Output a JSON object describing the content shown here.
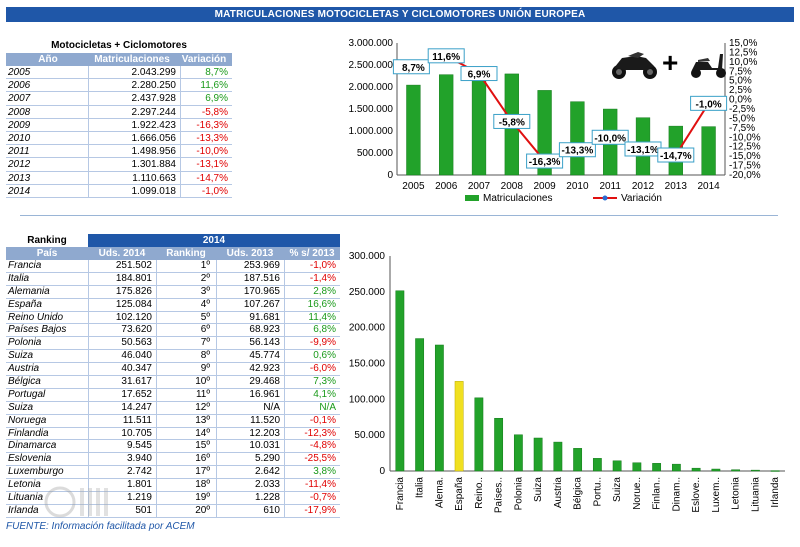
{
  "header": {
    "title": "MATRICULACIONES MOTOCICLETAS Y CICLOMOTORES UNIÓN EUROPEA"
  },
  "table1": {
    "title": "Motocicletas + Ciclomotores",
    "headers": [
      "Año",
      "Matriculaciones",
      "Variación"
    ],
    "rows": [
      {
        "year": "2005",
        "mat": "2.043.299",
        "var": "8,7%",
        "sign": "pos"
      },
      {
        "year": "2006",
        "mat": "2.280.250",
        "var": "11,6%",
        "sign": "pos"
      },
      {
        "year": "2007",
        "mat": "2.437.928",
        "var": "6,9%",
        "sign": "pos"
      },
      {
        "year": "2008",
        "mat": "2.297.244",
        "var": "-5,8%",
        "sign": "neg"
      },
      {
        "year": "2009",
        "mat": "1.922.423",
        "var": "-16,3%",
        "sign": "neg"
      },
      {
        "year": "2010",
        "mat": "1.666.056",
        "var": "-13,3%",
        "sign": "neg"
      },
      {
        "year": "2011",
        "mat": "1.498.956",
        "var": "-10,0%",
        "sign": "neg"
      },
      {
        "year": "2012",
        "mat": "1.301.884",
        "var": "-13,1%",
        "sign": "neg"
      },
      {
        "year": "2013",
        "mat": "1.110.663",
        "var": "-14,7%",
        "sign": "neg"
      },
      {
        "year": "2014",
        "mat": "1.099.018",
        "var": "-1,0%",
        "sign": "neg"
      }
    ]
  },
  "table2": {
    "ranking_label": "Ranking",
    "year_label": "2014",
    "headers": [
      "País",
      "Uds. 2014",
      "Ranking",
      "Uds. 2013",
      "% s/ 2013"
    ],
    "rows": [
      {
        "pais": "Francia",
        "uds": "251.502",
        "rank": "1º",
        "uds13": "253.969",
        "pct": "-1,0%",
        "sign": "neg"
      },
      {
        "pais": "Italia",
        "uds": "184.801",
        "rank": "2º",
        "uds13": "187.516",
        "pct": "-1,4%",
        "sign": "neg"
      },
      {
        "pais": "Alemania",
        "uds": "175.826",
        "rank": "3º",
        "uds13": "170.965",
        "pct": "2,8%",
        "sign": "pos"
      },
      {
        "pais": "España",
        "uds": "125.084",
        "rank": "4º",
        "uds13": "107.267",
        "pct": "16,6%",
        "sign": "pos"
      },
      {
        "pais": "Reino Unido",
        "uds": "102.120",
        "rank": "5º",
        "uds13": "91.681",
        "pct": "11,4%",
        "sign": "pos"
      },
      {
        "pais": "Países Bajos",
        "uds": "73.620",
        "rank": "6º",
        "uds13": "68.923",
        "pct": "6,8%",
        "sign": "pos"
      },
      {
        "pais": "Polonia",
        "uds": "50.563",
        "rank": "7º",
        "uds13": "56.143",
        "pct": "-9,9%",
        "sign": "neg"
      },
      {
        "pais": "Suiza",
        "uds": "46.040",
        "rank": "8º",
        "uds13": "45.774",
        "pct": "0,6%",
        "sign": "pos"
      },
      {
        "pais": "Austria",
        "uds": "40.347",
        "rank": "9º",
        "uds13": "42.923",
        "pct": "-6,0%",
        "sign": "neg"
      },
      {
        "pais": "Bélgica",
        "uds": "31.617",
        "rank": "10º",
        "uds13": "29.468",
        "pct": "7,3%",
        "sign": "pos"
      },
      {
        "pais": "Portugal",
        "uds": "17.652",
        "rank": "11º",
        "uds13": "16.961",
        "pct": "4,1%",
        "sign": "pos"
      },
      {
        "pais": "Suiza",
        "uds": "14.247",
        "rank": "12º",
        "uds13": "N/A",
        "pct": "N/A",
        "sign": "pos"
      },
      {
        "pais": "Noruega",
        "uds": "11.511",
        "rank": "13º",
        "uds13": "11.520",
        "pct": "-0,1%",
        "sign": "neg"
      },
      {
        "pais": "Finlandia",
        "uds": "10.705",
        "rank": "14º",
        "uds13": "12.203",
        "pct": "-12,3%",
        "sign": "neg"
      },
      {
        "pais": "Dinamarca",
        "uds": "9.545",
        "rank": "15º",
        "uds13": "10.031",
        "pct": "-4,8%",
        "sign": "neg"
      },
      {
        "pais": "Eslovenia",
        "uds": "3.940",
        "rank": "16º",
        "uds13": "5.290",
        "pct": "-25,5%",
        "sign": "neg"
      },
      {
        "pais": "Luxemburgo",
        "uds": "2.742",
        "rank": "17º",
        "uds13": "2.642",
        "pct": "3,8%",
        "sign": "pos"
      },
      {
        "pais": "Letonia",
        "uds": "1.801",
        "rank": "18º",
        "uds13": "2.033",
        "pct": "-11,4%",
        "sign": "neg"
      },
      {
        "pais": "Lituania",
        "uds": "1.219",
        "rank": "19º",
        "uds13": "1.228",
        "pct": "-0,7%",
        "sign": "neg"
      },
      {
        "pais": "Irlanda",
        "uds": "501",
        "rank": "20º",
        "uds13": "610",
        "pct": "-17,9%",
        "sign": "neg"
      }
    ]
  },
  "footer": {
    "text": "FUENTE: Información facilitada por ACEM"
  },
  "colors": {
    "bar": "#22a22a",
    "highlight": "#f0e020",
    "line": "#e01010",
    "header_blue": "#1f57a8"
  },
  "icons": [
    "motorcycle-icon",
    "plus-icon",
    "scooter-icon"
  ],
  "chart_data": [
    {
      "type": "bar",
      "categories": [
        "2005",
        "2006",
        "2007",
        "2008",
        "2009",
        "2010",
        "2011",
        "2012",
        "2013",
        "2014"
      ],
      "series": [
        {
          "name": "Matriculaciones",
          "type": "bar",
          "axis": "left",
          "values": [
            2043299,
            2280250,
            2437928,
            2297244,
            1922423,
            1666056,
            1498956,
            1301884,
            1110663,
            1099018
          ]
        },
        {
          "name": "Variación",
          "type": "line",
          "axis": "right",
          "values": [
            8.7,
            11.6,
            6.9,
            -5.8,
            -16.3,
            -13.3,
            -10.0,
            -13.1,
            -14.7,
            -1.0
          ],
          "labels": [
            "8,7%",
            "11,6%",
            "6,9%",
            "-5,8%",
            "-16,3%",
            "-13,3%",
            "-10,0%",
            "-13,1%",
            "-14,7%",
            "-1,0%"
          ]
        }
      ],
      "ylim": [
        0,
        3000000
      ],
      "y2lim": [
        -20,
        15
      ],
      "y_ticks": [
        "0",
        "500.000",
        "1.000.000",
        "1.500.000",
        "2.000.000",
        "2.500.000",
        "3.000.000"
      ],
      "y2_ticks": [
        "-20,0%",
        "-17,5%",
        "-15,0%",
        "-12,5%",
        "-10,0%",
        "-7,5%",
        "-5,0%",
        "-2,5%",
        "0,0%",
        "2,5%",
        "5,0%",
        "7,5%",
        "10,0%",
        "12,5%",
        "15,0%"
      ],
      "legend": [
        "Matriculaciones",
        "Variación"
      ],
      "legend_position": "bottom",
      "grid": false
    },
    {
      "type": "bar",
      "categories": [
        "Francia",
        "Italia",
        "Alema.",
        "España",
        "Reino..",
        "Países..",
        "Polonia",
        "Suiza",
        "Austria",
        "Bélgica",
        "Portu..",
        "Suiza",
        "Norue..",
        "Finlan..",
        "Dinam..",
        "Eslove..",
        "Luxem..",
        "Letonia",
        "Lituania",
        "Irlanda"
      ],
      "values": [
        251502,
        184801,
        175826,
        125084,
        102120,
        73620,
        50563,
        46040,
        40347,
        31617,
        17652,
        14247,
        11511,
        10705,
        9545,
        3940,
        2742,
        1801,
        1219,
        501
      ],
      "highlight_index": 3,
      "ylim": [
        0,
        300000
      ],
      "y_ticks": [
        "0",
        "50.000",
        "100.000",
        "150.000",
        "200.000",
        "250.000",
        "300.000"
      ],
      "grid": false
    }
  ]
}
